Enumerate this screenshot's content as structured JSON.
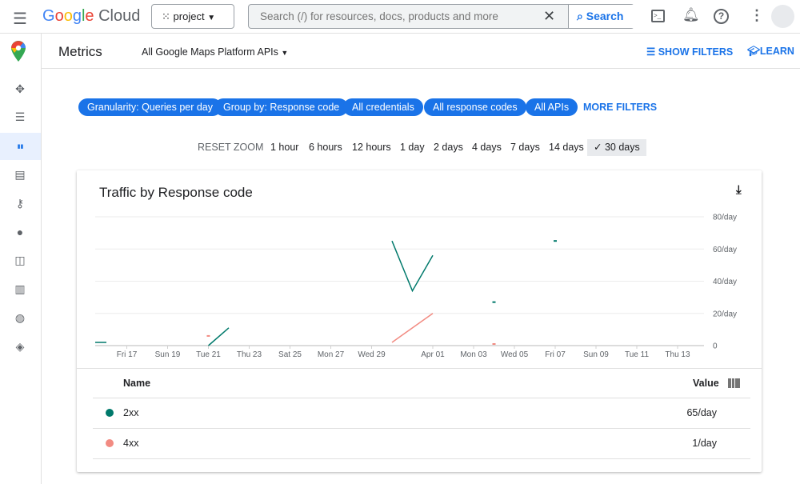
{
  "topbar": {
    "brand": "Google Cloud",
    "project": "project",
    "search_placeholder": "Search (/) for resources, docs, products and more",
    "search_button": "Search"
  },
  "subheader": {
    "title": "Metrics",
    "api_selector": "All Google Maps Platform APIs",
    "show_filters": "SHOW FILTERS",
    "learn": "LEARN"
  },
  "sidebar": {
    "items": [
      "move-icon",
      "list-icon",
      "bar-chart-icon",
      "quota-icon",
      "key-icon",
      "person-icon",
      "widgets-icon",
      "map-icon",
      "palette-icon",
      "layers-icon"
    ],
    "active": 2
  },
  "filters": {
    "chips": [
      "Granularity: Queries per day",
      "Group by: Response code",
      "All credentials",
      "All response codes",
      "All APIs"
    ],
    "more": "MORE FILTERS"
  },
  "ranges": {
    "reset": "RESET ZOOM",
    "options": [
      "1 hour",
      "6 hours",
      "12 hours",
      "1 day",
      "2 days",
      "4 days",
      "7 days",
      "14 days",
      "30 days"
    ],
    "selected": "30 days"
  },
  "chart": {
    "title": "Traffic by Response code"
  },
  "chart_data": {
    "type": "line",
    "title": "Traffic by Response code",
    "x_ticks": [
      "Fri 17",
      "Sun 19",
      "Tue 21",
      "Thu 23",
      "Sat 25",
      "Mon 27",
      "Wed 29",
      "Apr 01",
      "Mon 03",
      "Wed 05",
      "Fri 07",
      "Sun 09",
      "Tue 11",
      "Thu 13"
    ],
    "x_tick_dates": [
      "Mar 17",
      "Mar 19",
      "Mar 21",
      "Mar 23",
      "Mar 25",
      "Mar 27",
      "Mar 29",
      "Apr 1",
      "Apr 3",
      "Apr 5",
      "Apr 7",
      "Apr 9",
      "Apr 11",
      "Apr 13"
    ],
    "y_ticks": [
      "0",
      "20/day",
      "40/day",
      "60/day",
      "80/day"
    ],
    "ylim": [
      0,
      80
    ],
    "grid": true,
    "series": [
      {
        "name": "2xx",
        "color": "#00796b",
        "segments": [
          [
            [
              "Mar 15",
              2
            ],
            [
              "Mar 16",
              2
            ]
          ],
          [
            [
              "Mar 21",
              0
            ],
            [
              "Mar 22",
              11
            ]
          ],
          [
            [
              "Mar 30",
              65
            ],
            [
              "Mar 31",
              34
            ],
            [
              "Apr 1",
              56
            ]
          ],
          [
            [
              "Apr 4",
              27
            ]
          ],
          [
            [
              "Apr 7",
              65
            ]
          ]
        ]
      },
      {
        "name": "4xx",
        "color": "#f28b82",
        "segments": [
          [
            [
              "Mar 21",
              6
            ]
          ],
          [
            [
              "Mar 30",
              2
            ],
            [
              "Apr 1",
              20
            ]
          ],
          [
            [
              "Apr 4",
              1
            ]
          ]
        ]
      }
    ]
  },
  "table": {
    "headers": [
      "Name",
      "Value"
    ],
    "rows": [
      {
        "name": "2xx",
        "value": "65/day",
        "color": "#00796b"
      },
      {
        "name": "4xx",
        "value": "1/day",
        "color": "#f28b82"
      }
    ]
  }
}
